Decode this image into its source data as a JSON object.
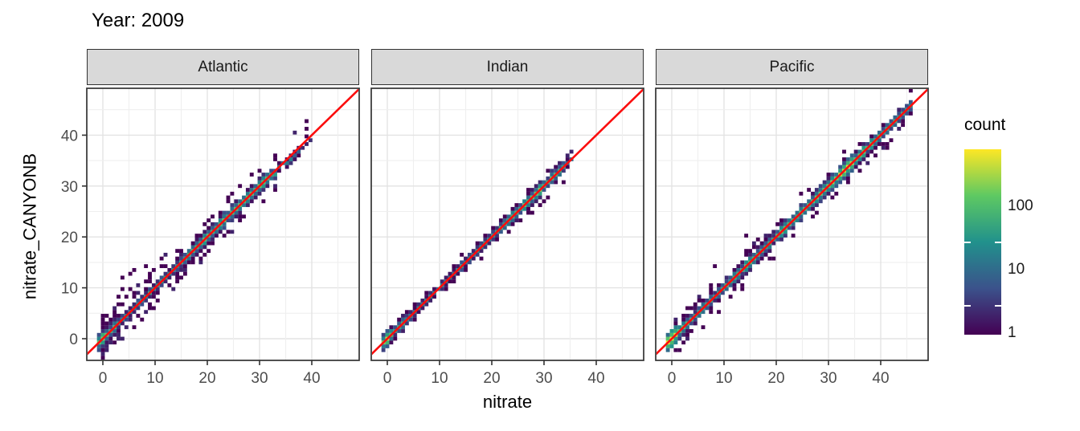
{
  "title": "Year: 2009",
  "facets": [
    "Atlantic",
    "Indian",
    "Pacific"
  ],
  "axes": {
    "x_label": "nitrate",
    "y_label": "nitrate_CANYONB",
    "x_ticks": [
      0,
      10,
      20,
      30,
      40
    ],
    "y_ticks": [
      0,
      10,
      20,
      30,
      40
    ]
  },
  "legend": {
    "title": "count",
    "tick_labels": [
      "100",
      "10",
      "1"
    ],
    "tick_values": [
      100,
      10,
      1
    ]
  },
  "colors": {
    "identity_line": "#fb0d0d",
    "strip_bg": "#d9d9d9",
    "panel_border": "#333333",
    "grid_major": "#e3e3e3",
    "grid_minor": "#efefef",
    "tick_mark": "#333333",
    "tick_label": "#4d4d4d",
    "text": "#000000",
    "viridis_stops": [
      [
        0,
        "#440154"
      ],
      [
        0.25,
        "#3b528b"
      ],
      [
        0.5,
        "#21918c"
      ],
      [
        0.75,
        "#5ec962"
      ],
      [
        1,
        "#fde725"
      ]
    ]
  },
  "chart_data": {
    "type": "heatmap",
    "subtype": "bin2d-scatter-density",
    "title": "Year: 2009",
    "xlabel": "nitrate",
    "ylabel": "nitrate_CANYONB",
    "x_range": [
      -3,
      49.2
    ],
    "y_range": [
      -4.3,
      49.2
    ],
    "bin_width": 0.75,
    "count_scale": {
      "type": "log10",
      "min": 1,
      "max": 800,
      "legend_ticks": [
        1,
        10,
        100
      ]
    },
    "identity_line": {
      "slope": 1,
      "intercept": 0
    },
    "grid_step": 5,
    "panels": [
      {
        "name": "Atlantic",
        "seed": 12,
        "diag_max": 39.5,
        "profile": [
          [
            0,
            200
          ],
          [
            1.5,
            90
          ],
          [
            4,
            35
          ],
          [
            8,
            25
          ],
          [
            12,
            35
          ],
          [
            16,
            55
          ],
          [
            20,
            85
          ],
          [
            24,
            100
          ],
          [
            28,
            130
          ],
          [
            31,
            90
          ],
          [
            33,
            28
          ],
          [
            35,
            14
          ],
          [
            37,
            6
          ],
          [
            39.5,
            2
          ]
        ],
        "spread": 1.1,
        "n_scatter": 120,
        "low_bias": 2.1,
        "tail_offset": -0.13,
        "tail_start": 31,
        "outliers": [
          [
            2,
            6
          ],
          [
            3,
            8
          ],
          [
            4,
            9.5
          ],
          [
            3.5,
            12
          ],
          [
            5,
            13
          ],
          [
            6,
            13.5
          ],
          [
            7,
            10.5
          ],
          [
            8,
            14
          ],
          [
            9,
            12
          ],
          [
            5,
            10
          ],
          [
            2.5,
            4.5
          ],
          [
            10,
            13.5
          ],
          [
            11,
            16
          ],
          [
            6,
            8
          ],
          [
            4,
            6.5
          ],
          [
            12,
            14.5
          ],
          [
            16,
            13
          ],
          [
            17,
            18.5
          ],
          [
            20,
            17.5
          ],
          [
            23,
            20.5
          ],
          [
            26.5,
            23.5
          ],
          [
            15,
            17.5
          ],
          [
            13,
            10.5
          ],
          [
            9,
            6.5
          ],
          [
            7,
            4.5
          ],
          [
            14,
            11
          ],
          [
            18,
            20.5
          ],
          [
            21,
            24
          ],
          [
            25,
            28.5
          ],
          [
            30,
            33
          ]
        ]
      },
      {
        "name": "Indian",
        "seed": 7,
        "diag_max": 35,
        "profile": [
          [
            0,
            420
          ],
          [
            1,
            70
          ],
          [
            4,
            25
          ],
          [
            8,
            18
          ],
          [
            12,
            22
          ],
          [
            16,
            26
          ],
          [
            20,
            30
          ],
          [
            24,
            55
          ],
          [
            27,
            85
          ],
          [
            30,
            120
          ],
          [
            32,
            70
          ],
          [
            34,
            25
          ],
          [
            35,
            12
          ]
        ],
        "spread": 0.4,
        "n_scatter": 30,
        "low_bias": 1.3,
        "tail_offset": 0,
        "tail_start": 35,
        "outliers": [
          [
            3,
            1.5
          ],
          [
            23.5,
            21
          ],
          [
            28,
            25
          ],
          [
            29,
            26
          ],
          [
            30,
            27
          ],
          [
            27,
            24.5
          ],
          [
            31,
            28
          ],
          [
            18,
            16
          ],
          [
            13,
            11.5
          ],
          [
            33.5,
            30.5
          ],
          [
            25.5,
            23
          ],
          [
            30.5,
            33
          ]
        ]
      },
      {
        "name": "Pacific",
        "seed": 5,
        "diag_max": 46,
        "profile": [
          [
            0,
            620
          ],
          [
            1.5,
            160
          ],
          [
            4,
            60
          ],
          [
            8,
            50
          ],
          [
            12,
            60
          ],
          [
            16,
            65
          ],
          [
            20,
            75
          ],
          [
            24,
            85
          ],
          [
            28,
            130
          ],
          [
            30,
            220
          ],
          [
            33,
            520
          ],
          [
            35,
            160
          ],
          [
            38,
            90
          ],
          [
            41,
            65
          ],
          [
            44,
            45
          ],
          [
            46,
            18
          ]
        ],
        "spread": 0.9,
        "n_scatter": 70,
        "low_bias": 1.2,
        "tail_offset": 0,
        "tail_start": 46,
        "outliers": [
          [
            14,
            20
          ],
          [
            8,
            14.5
          ],
          [
            19.5,
            16
          ],
          [
            13.5,
            10
          ],
          [
            23,
            20
          ],
          [
            28,
            24.5
          ],
          [
            31,
            27.5
          ],
          [
            36,
            33
          ],
          [
            3,
            6
          ],
          [
            1,
            3.5
          ],
          [
            42,
            39
          ],
          [
            33,
            36.5
          ],
          [
            26,
            29
          ],
          [
            21,
            23.5
          ],
          [
            6,
            2.5
          ],
          [
            11,
            8
          ],
          [
            16.5,
            19.5
          ],
          [
            34,
            30.5
          ],
          [
            39,
            36
          ]
        ]
      }
    ]
  }
}
